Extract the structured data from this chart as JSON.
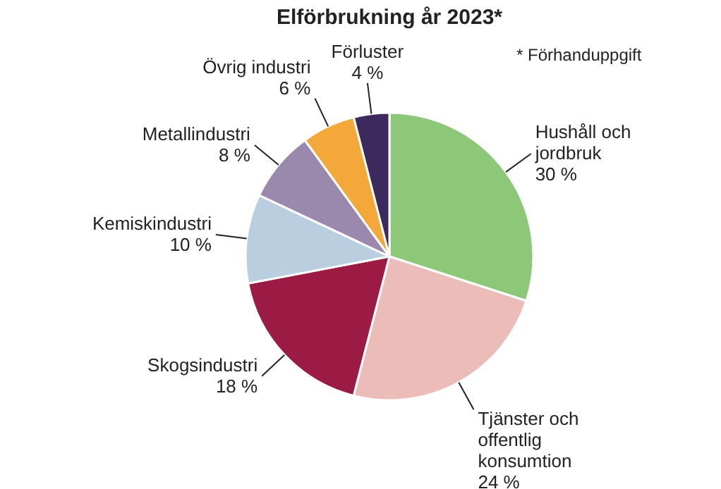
{
  "chart_data": {
    "type": "pie",
    "title": "Elförbrukning år 2023*",
    "categories": [
      "Hushåll och jordbruk",
      "Tjänster och offentlig konsumtion",
      "Skogsindustri",
      "Kemiskindustri",
      "Metallindustri",
      "Övrig industri",
      "Förluster"
    ],
    "values": [
      30,
      24,
      18,
      10,
      8,
      6,
      4
    ],
    "value_labels": [
      "30 %",
      "24 %",
      "18 %",
      "10 %",
      "8 %",
      "6 %",
      "4 %"
    ],
    "colors": [
      "#8dc878",
      "#ebbcb8",
      "#9b1b45",
      "#b9cfe0",
      "#9b88ad",
      "#f5a83a",
      "#3c2a5e"
    ],
    "annotations": [
      "* Förhanduppgift"
    ]
  }
}
